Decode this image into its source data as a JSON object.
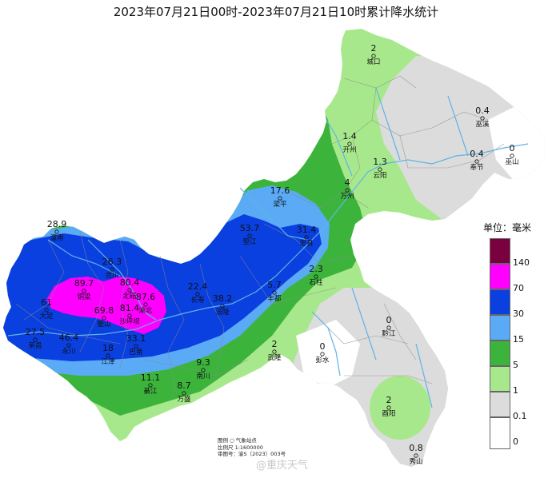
{
  "title": "2023年07月21日00时-2023年07月21日10时累计降水统计",
  "legend": {
    "title": "单位：毫米",
    "classes": [
      {
        "label": "140",
        "color": "#7a0040"
      },
      {
        "label": "70",
        "color": "#ff00ff"
      },
      {
        "label": "30",
        "color": "#0a3fe0"
      },
      {
        "label": "15",
        "color": "#5aaaf5"
      },
      {
        "label": "5",
        "color": "#3cb43c"
      },
      {
        "label": "1",
        "color": "#a8e88c"
      },
      {
        "label": "0.1",
        "color": "#dcdcdc"
      },
      {
        "label": "0",
        "color": "#ffffff"
      }
    ]
  },
  "stations": [
    {
      "name": "城口",
      "value": "2"
    },
    {
      "name": "巫溪",
      "value": "0.4"
    },
    {
      "name": "开州",
      "value": "1.4"
    },
    {
      "name": "巫山",
      "value": "0"
    },
    {
      "name": "奉节",
      "value": "0.4"
    },
    {
      "name": "云阳",
      "value": "1.3"
    },
    {
      "name": "万州",
      "value": "4"
    },
    {
      "name": "梁平",
      "value": "17.6"
    },
    {
      "name": "垫江",
      "value": "53.7"
    },
    {
      "name": "忠县",
      "value": "31.4"
    },
    {
      "name": "潼南",
      "value": "28.9"
    },
    {
      "name": "合川",
      "value": "26.3"
    },
    {
      "name": "石柱",
      "value": "2.3"
    },
    {
      "name": "铜梁",
      "value": "89.7"
    },
    {
      "name": "北碚",
      "value": "80.4"
    },
    {
      "name": "渝北",
      "value": "87.6"
    },
    {
      "name": "长寿",
      "value": "22.4"
    },
    {
      "name": "涪陵",
      "value": "38.2"
    },
    {
      "name": "丰都",
      "value": "5.7"
    },
    {
      "name": "大足",
      "value": "61"
    },
    {
      "name": "璧山",
      "value": "69.8"
    },
    {
      "name": "沙坪坝",
      "value": "81.4"
    },
    {
      "name": "荣昌",
      "value": "27.5"
    },
    {
      "name": "永川",
      "value": "46.4"
    },
    {
      "name": "江津",
      "value": "18"
    },
    {
      "name": "巴南",
      "value": "33.1"
    },
    {
      "name": "黔江",
      "value": "0"
    },
    {
      "name": "武隆",
      "value": "2"
    },
    {
      "name": "彭水",
      "value": "0"
    },
    {
      "name": "南川",
      "value": "9.3"
    },
    {
      "name": "綦江",
      "value": "11.1"
    },
    {
      "name": "万盛",
      "value": "8.7"
    },
    {
      "name": "酉阳",
      "value": "2"
    },
    {
      "name": "秀山",
      "value": "0.8"
    }
  ],
  "notes": {
    "line1": "图例 ○ 气象站点",
    "line2": "比例尺 1:1600000",
    "line3": "审图号：渝S（2023）003号"
  },
  "watermark": "@重庆天气",
  "colors": {
    "river": "#5fb4e6",
    "boundary": "#8a8a8a"
  }
}
